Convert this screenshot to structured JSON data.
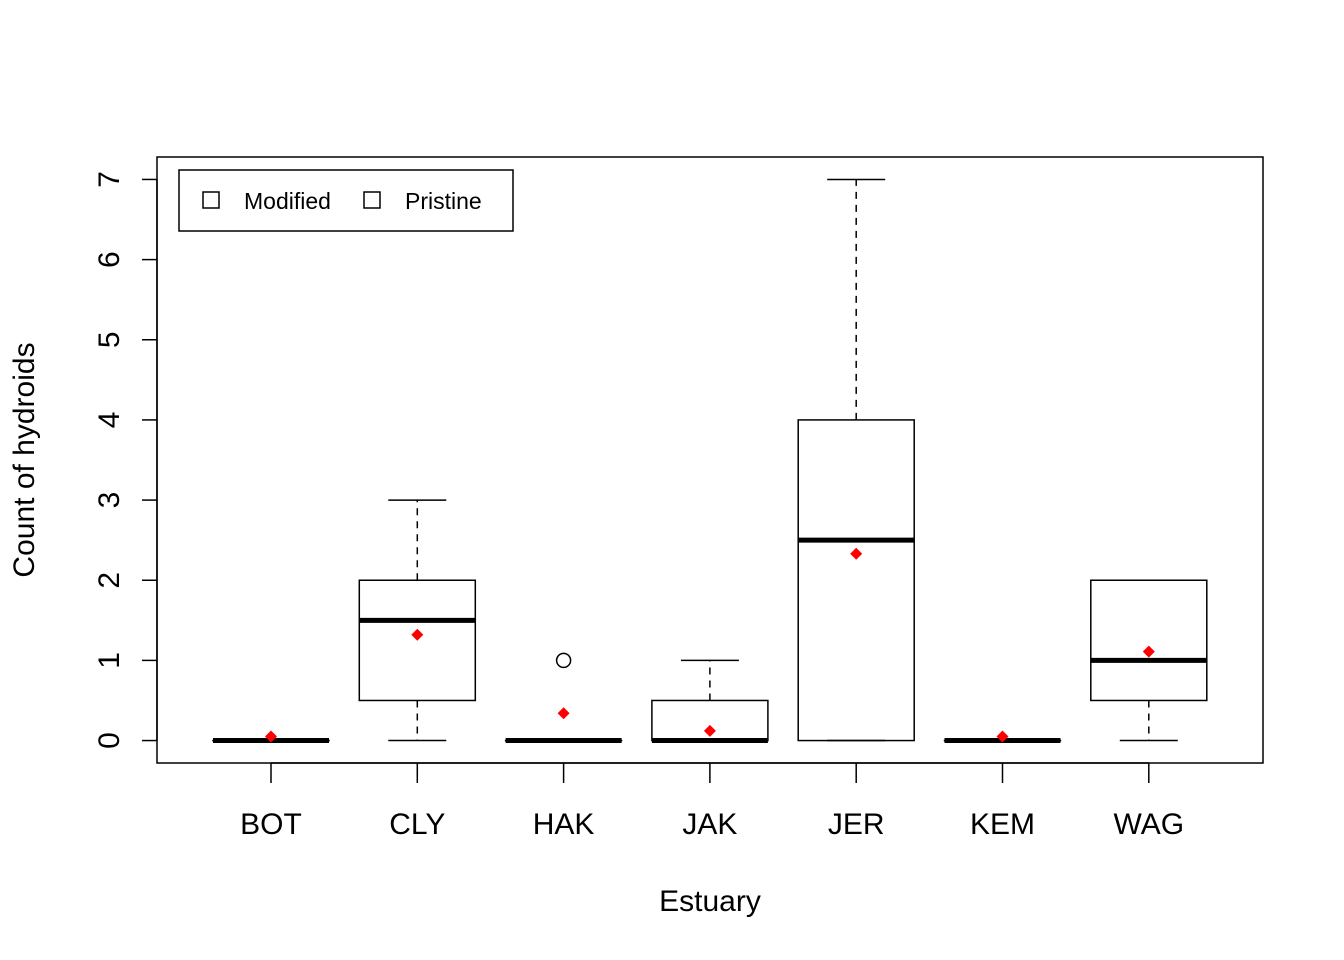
{
  "chart_data": {
    "type": "boxplot",
    "title": "",
    "xlabel": "Estuary",
    "ylabel": "Count of hydroids",
    "ylim": [
      -0.28,
      7.28
    ],
    "yticks": [
      "0",
      "1",
      "2",
      "3",
      "4",
      "5",
      "6",
      "7"
    ],
    "categories": [
      "BOT",
      "CLY",
      "HAK",
      "JAK",
      "JER",
      "KEM",
      "WAG"
    ],
    "boxes": [
      {
        "category": "BOT",
        "whisker_low": 0,
        "q1": 0,
        "median": 0,
        "q3": 0,
        "whisker_high": 0,
        "mean": 0.05,
        "outliers": []
      },
      {
        "category": "CLY",
        "whisker_low": 0,
        "q1": 0.5,
        "median": 1.5,
        "q3": 2,
        "whisker_high": 3,
        "mean": 1.32,
        "outliers": []
      },
      {
        "category": "HAK",
        "whisker_low": 0,
        "q1": 0,
        "median": 0,
        "q3": 0,
        "whisker_high": 0,
        "mean": 0.34,
        "outliers": [
          1
        ]
      },
      {
        "category": "JAK",
        "whisker_low": 0,
        "q1": 0,
        "median": 0,
        "q3": 0.5,
        "whisker_high": 1,
        "mean": 0.12,
        "outliers": []
      },
      {
        "category": "JER",
        "whisker_low": 0,
        "q1": 0,
        "median": 2.5,
        "q3": 4,
        "whisker_high": 7,
        "mean": 2.33,
        "outliers": []
      },
      {
        "category": "KEM",
        "whisker_low": 0,
        "q1": 0,
        "median": 0,
        "q3": 0,
        "whisker_high": 0,
        "mean": 0.05,
        "outliers": []
      },
      {
        "category": "WAG",
        "whisker_low": 0,
        "q1": 0.5,
        "median": 1,
        "q3": 2,
        "whisker_high": 2,
        "mean": 1.11,
        "outliers": []
      }
    ],
    "legend": {
      "position": "top-left",
      "entries": [
        "Modified",
        "Pristine"
      ]
    },
    "mean_marker_color": "#ff0000",
    "grid": false
  }
}
